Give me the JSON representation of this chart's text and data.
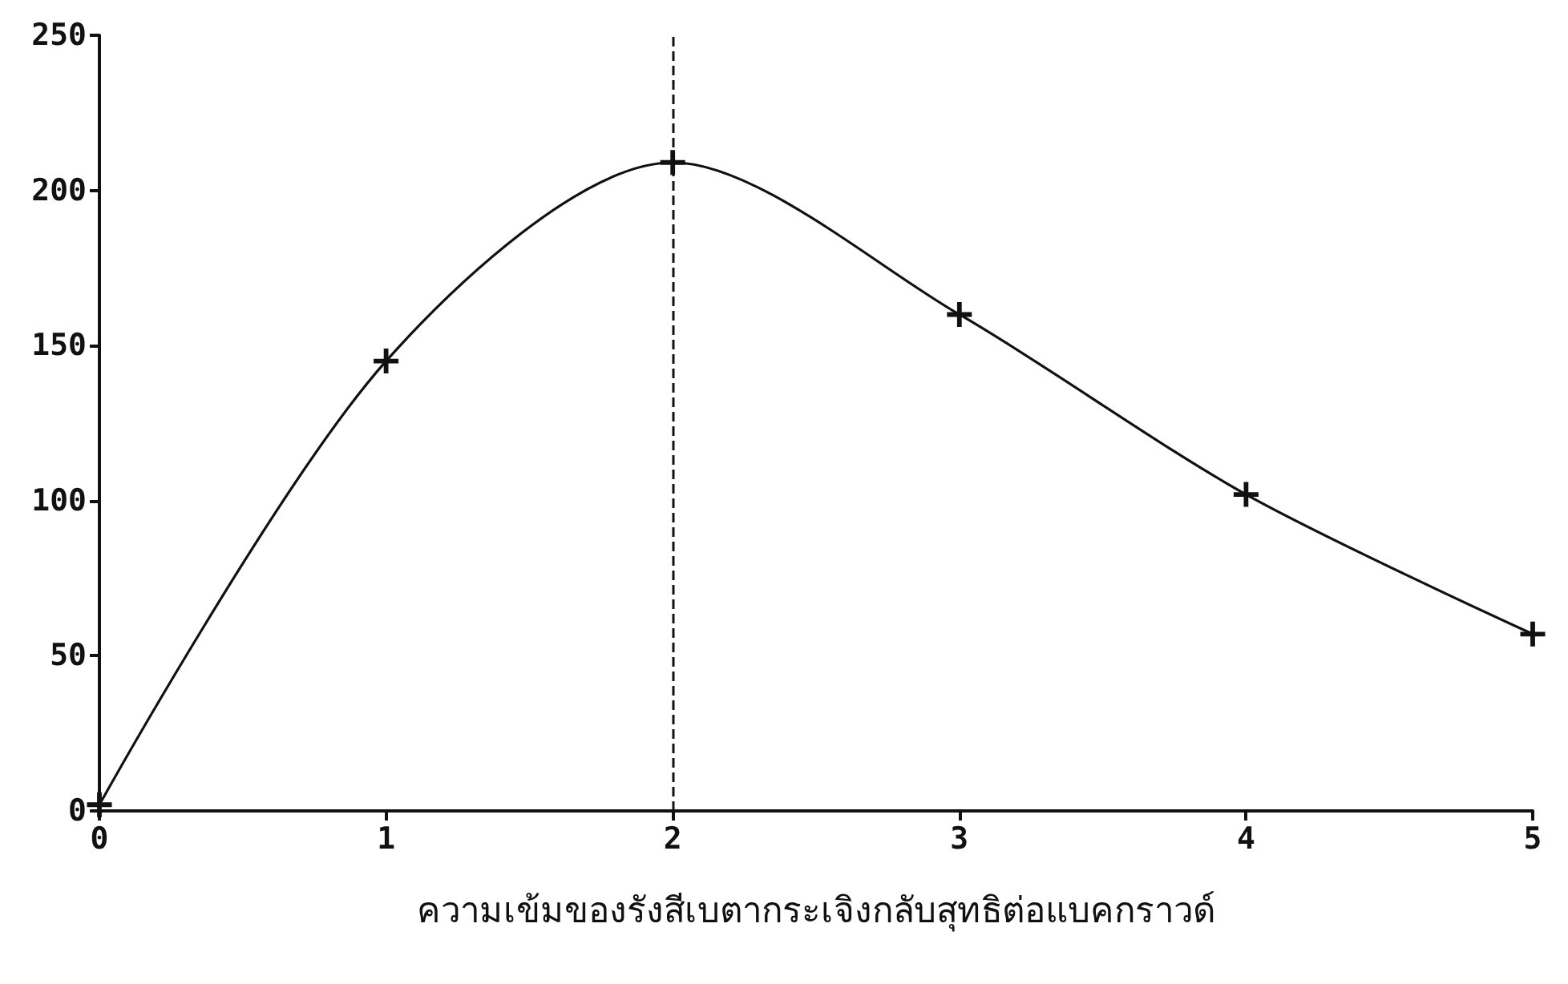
{
  "chart_data": {
    "type": "line",
    "xlabel": "ความเข้มของรังสีเบตากระเจิงกลับสุทธิต่อแบคกราวด์",
    "x": [
      0,
      1,
      2,
      3,
      4,
      5
    ],
    "series": [
      {
        "color": "#111111",
        "values": [
          2,
          145,
          209,
          160,
          102,
          57
        ]
      }
    ],
    "xlim": [
      0,
      5
    ],
    "xticks": [
      0,
      1,
      2,
      3,
      4,
      5
    ],
    "ylim": [
      0,
      250
    ],
    "yticks": [
      0,
      50,
      100,
      150,
      200,
      250
    ],
    "ref_lines": [
      {
        "axis": "x",
        "value": 2,
        "line_style": "dashed",
        "color": "#111111"
      }
    ],
    "marker": "cross",
    "line_style": "solid",
    "grid": false
  }
}
